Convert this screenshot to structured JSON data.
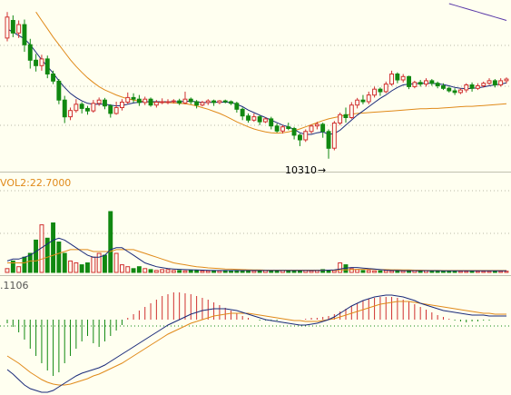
{
  "colors": {
    "background": "#fffff0",
    "grid": "#b8b8a8",
    "divider": "#c0c0b0",
    "up": "#d03030",
    "down": "#118811",
    "ma_blue": "#1a2a7a",
    "ma_orange": "#e08a1a",
    "ma_purple": "#5a3aa8",
    "annotation": "#000000"
  },
  "price_panel": {
    "low_annotation": "10310",
    "low_arrow": "→"
  },
  "volume_panel": {
    "label": "VOL2:22.7000"
  },
  "macd_panel": {
    "label": ".1106"
  },
  "chart_data": [
    {
      "type": "candlestick",
      "panel": "price",
      "y_range": [
        10290,
        10680
      ],
      "low_marker_value": 10310,
      "candles": [
        [
          10598,
          10648,
          10590,
          10660
        ],
        [
          10640,
          10610,
          10600,
          10652
        ],
        [
          10610,
          10630,
          10598,
          10640
        ],
        [
          10630,
          10582,
          10565,
          10642
        ],
        [
          10582,
          10545,
          10525,
          10596
        ],
        [
          10545,
          10532,
          10518,
          10560
        ],
        [
          10532,
          10548,
          10520,
          10558
        ],
        [
          10548,
          10512,
          10502,
          10556
        ],
        [
          10512,
          10495,
          10488,
          10520
        ],
        [
          10495,
          10450,
          10440,
          10500
        ],
        [
          10450,
          10410,
          10395,
          10460
        ],
        [
          10410,
          10425,
          10402,
          10432
        ],
        [
          10425,
          10440,
          10420,
          10452
        ],
        [
          10440,
          10430,
          10418,
          10445
        ],
        [
          10430,
          10424,
          10415,
          10436
        ],
        [
          10424,
          10442,
          10420,
          10450
        ],
        [
          10442,
          10450,
          10436,
          10456
        ],
        [
          10450,
          10436,
          10428,
          10455
        ],
        [
          10436,
          10418,
          10408,
          10440
        ],
        [
          10418,
          10432,
          10415,
          10446
        ],
        [
          10432,
          10445,
          10425,
          10452
        ],
        [
          10445,
          10456,
          10440,
          10468
        ],
        [
          10456,
          10452,
          10444,
          10466
        ],
        [
          10452,
          10444,
          10436,
          10462
        ],
        [
          10444,
          10452,
          10438,
          10458
        ],
        [
          10452,
          10438,
          10434,
          10456
        ],
        [
          10438,
          10445,
          10432,
          10450
        ],
        [
          10445,
          10446,
          10440,
          10454
        ],
        [
          10446,
          10446,
          10440,
          10452
        ],
        [
          10446,
          10448,
          10442,
          10452
        ],
        [
          10448,
          10443,
          10438,
          10453
        ],
        [
          10443,
          10452,
          10440,
          10470
        ],
        [
          10452,
          10446,
          10440,
          10456
        ],
        [
          10446,
          10438,
          10430,
          10450
        ],
        [
          10438,
          10444,
          10435,
          10448
        ],
        [
          10444,
          10448,
          10438,
          10452
        ],
        [
          10448,
          10444,
          10436,
          10451
        ],
        [
          10444,
          10448,
          10440,
          10450
        ],
        [
          10448,
          10446,
          10442,
          10451
        ],
        [
          10446,
          10442,
          10438,
          10449
        ],
        [
          10442,
          10428,
          10420,
          10446
        ],
        [
          10428,
          10412,
          10402,
          10432
        ],
        [
          10412,
          10402,
          10396,
          10418
        ],
        [
          10402,
          10410,
          10398,
          10418
        ],
        [
          10410,
          10398,
          10390,
          10414
        ],
        [
          10398,
          10405,
          10395,
          10408
        ],
        [
          10405,
          10388,
          10380,
          10410
        ],
        [
          10388,
          10376,
          10372,
          10394
        ],
        [
          10376,
          10386,
          10370,
          10390
        ],
        [
          10386,
          10382,
          10378,
          10396
        ],
        [
          10382,
          10366,
          10356,
          10386
        ],
        [
          10366,
          10355,
          10340,
          10370
        ],
        [
          10355,
          10375,
          10350,
          10380
        ],
        [
          10375,
          10388,
          10370,
          10392
        ],
        [
          10388,
          10392,
          10380,
          10398
        ],
        [
          10392,
          10375,
          10360,
          10396
        ],
        [
          10375,
          10335,
          10310,
          10380
        ],
        [
          10335,
          10395,
          10330,
          10400
        ],
        [
          10395,
          10415,
          10390,
          10420
        ],
        [
          10415,
          10408,
          10396,
          10432
        ],
        [
          10408,
          10438,
          10405,
          10445
        ],
        [
          10438,
          10450,
          10430,
          10455
        ],
        [
          10450,
          10446,
          10440,
          10462
        ],
        [
          10446,
          10462,
          10440,
          10470
        ],
        [
          10462,
          10476,
          10456,
          10482
        ],
        [
          10476,
          10470,
          10460,
          10480
        ],
        [
          10470,
          10488,
          10466,
          10494
        ],
        [
          10488,
          10512,
          10484,
          10520
        ],
        [
          10512,
          10498,
          10490,
          10516
        ],
        [
          10498,
          10506,
          10492,
          10512
        ],
        [
          10506,
          10482,
          10476,
          10508
        ],
        [
          10482,
          10492,
          10478,
          10496
        ],
        [
          10492,
          10488,
          10482,
          10498
        ],
        [
          10488,
          10496,
          10482,
          10502
        ],
        [
          10496,
          10490,
          10484,
          10500
        ],
        [
          10490,
          10484,
          10478,
          10494
        ],
        [
          10484,
          10478,
          10474,
          10490
        ],
        [
          10478,
          10472,
          10468,
          10482
        ],
        [
          10472,
          10468,
          10462,
          10478
        ],
        [
          10468,
          10474,
          10464,
          10478
        ],
        [
          10474,
          10486,
          10468,
          10490
        ],
        [
          10486,
          10478,
          10470,
          10492
        ],
        [
          10478,
          10484,
          10474,
          10490
        ],
        [
          10484,
          10490,
          10480,
          10494
        ],
        [
          10490,
          10496,
          10486,
          10502
        ],
        [
          10496,
          10486,
          10480,
          10500
        ],
        [
          10486,
          10496,
          10482,
          10502
        ],
        [
          10496,
          10500,
          10490,
          10504
        ]
      ],
      "ma_short": [
        10620,
        10612,
        10604,
        10596,
        10582,
        10564,
        10546,
        10530,
        10514,
        10496,
        10480,
        10466,
        10456,
        10448,
        10442,
        10440,
        10440,
        10440,
        10438,
        10436,
        10437,
        10440,
        10443,
        10445,
        10446,
        10446,
        10446,
        10446,
        10446,
        10446,
        10446,
        10447,
        10447,
        10446,
        10444,
        10444,
        10445,
        10445,
        10445,
        10444,
        10440,
        10434,
        10426,
        10420,
        10414,
        10408,
        10402,
        10396,
        10390,
        10386,
        10380,
        10372,
        10368,
        10368,
        10372,
        10374,
        10368,
        10370,
        10378,
        10390,
        10402,
        10414,
        10424,
        10434,
        10444,
        10454,
        10462,
        10472,
        10480,
        10486,
        10488,
        10489,
        10490,
        10490,
        10490,
        10489,
        10487,
        10484,
        10480,
        10478,
        10477,
        10478,
        10479,
        10481,
        10484,
        10486,
        10488,
        10491
      ],
      "ma_mid": [
        null,
        null,
        null,
        null,
        null,
        10660,
        10640,
        10620,
        10600,
        10582,
        10564,
        10546,
        10530,
        10516,
        10503,
        10492,
        10482,
        10474,
        10468,
        10462,
        10457,
        10453,
        10450,
        10448,
        10446,
        10445,
        10444,
        10444,
        10444,
        10443,
        10442,
        10441,
        10439,
        10436,
        10432,
        10428,
        10423,
        10418,
        10412,
        10405,
        10398,
        10392,
        10386,
        10381,
        10377,
        10374,
        10372,
        10371,
        10372,
        10374,
        10377,
        10381,
        10386,
        10391,
        10396,
        10401,
        10405,
        10408,
        10411,
        10414,
        10416,
        10418,
        10419,
        10420,
        10421,
        10422,
        10423,
        10424,
        10425,
        10426,
        10427,
        10428,
        10429,
        10429,
        10430,
        10430,
        10431,
        10432,
        10433,
        10434,
        10435,
        10435,
        10436,
        10437,
        10438,
        10439,
        10440,
        10441
      ],
      "ma_long": [
        null,
        null,
        null,
        null,
        null,
        null,
        null,
        null,
        null,
        null,
        null,
        null,
        null,
        null,
        null,
        null,
        null,
        null,
        null,
        null,
        null,
        null,
        null,
        null,
        null,
        null,
        null,
        null,
        null,
        null,
        null,
        null,
        null,
        null,
        null,
        null,
        null,
        null,
        null,
        null,
        null,
        null,
        null,
        null,
        null,
        null,
        null,
        null,
        null,
        null,
        null,
        null,
        null,
        null,
        null,
        null,
        null,
        null,
        null,
        null,
        null,
        null,
        null,
        null,
        null,
        null,
        null,
        null,
        null,
        null,
        null,
        null,
        null,
        null,
        null,
        null,
        null,
        10680,
        10676,
        10672,
        10668,
        10664,
        10660,
        10656,
        10652,
        10648,
        10644,
        10640
      ]
    },
    {
      "type": "bar",
      "panel": "volume",
      "y_range": [
        0,
        42
      ],
      "values": [
        2,
        6,
        3,
        8,
        10,
        17,
        25,
        18,
        26,
        16,
        10,
        6,
        5,
        4,
        5,
        8,
        10,
        9,
        32,
        10,
        4,
        3,
        2,
        3,
        2,
        1.5,
        1,
        1.5,
        1.5,
        1,
        1,
        0.8,
        1,
        1,
        0.8,
        0.8,
        1,
        0.8,
        1,
        0.8,
        1,
        0.8,
        1,
        0.8,
        1,
        1,
        0.8,
        1,
        1,
        0.8,
        0.8,
        1.2,
        1,
        0.8,
        1,
        1.5,
        1.2,
        1,
        5,
        4,
        2,
        1.5,
        1,
        1,
        0.8,
        0.8,
        1,
        0.8,
        1,
        0.8,
        1,
        1.2,
        1,
        1,
        0.8,
        0.8,
        0.8,
        0.8,
        0.6,
        0.6,
        0.6,
        0.6,
        0.6,
        0.6,
        0.6,
        0.6,
        0.6,
        0.6
      ],
      "ma_blue": [
        6,
        7,
        7,
        8,
        9,
        11,
        13,
        15,
        17,
        18,
        17,
        15,
        13,
        11,
        9,
        8,
        8,
        9,
        12,
        13,
        13,
        11,
        9,
        7,
        5,
        4,
        3,
        2.5,
        2,
        1.8,
        1.6,
        1.5,
        1.4,
        1.3,
        1.2,
        1.1,
        1,
        1,
        1,
        1,
        1,
        1,
        1,
        1,
        1,
        1,
        1,
        1,
        1,
        1,
        1,
        1,
        1,
        1,
        1,
        1.1,
        1.2,
        1.3,
        1.8,
        2.3,
        2.6,
        2.6,
        2.3,
        2,
        1.8,
        1.5,
        1.2,
        1,
        1,
        0.9,
        0.9,
        0.9,
        0.9,
        0.9,
        0.9,
        0.9,
        0.8,
        0.8,
        0.8,
        0.8,
        0.8,
        0.8,
        0.8,
        0.8,
        0.8,
        0.8,
        0.8,
        0.8
      ],
      "ma_orange": [
        5,
        5,
        5,
        5,
        6,
        6,
        7,
        8,
        9,
        10,
        11,
        12,
        12,
        12,
        12,
        11,
        11,
        11,
        11,
        12,
        12,
        12,
        12,
        11,
        10,
        9,
        8,
        7,
        6,
        5,
        4.5,
        4,
        3.5,
        3,
        2.7,
        2.4,
        2.2,
        2,
        1.8,
        1.7,
        1.6,
        1.5,
        1.4,
        1.3,
        1.3,
        1.2,
        1.2,
        1.2,
        1.2,
        1.2,
        1.2,
        1.2,
        1.2,
        1.2,
        1.2,
        1.2,
        1.2,
        1.2,
        1.3,
        1.4,
        1.5,
        1.6,
        1.6,
        1.6,
        1.6,
        1.5,
        1.5,
        1.4,
        1.4,
        1.3,
        1.3,
        1.2,
        1.2,
        1.1,
        1.1,
        1.1,
        1,
        1,
        1,
        1,
        1,
        1,
        1,
        1,
        1,
        1,
        1,
        1
      ]
    },
    {
      "type": "bar",
      "panel": "macd",
      "y_range": [
        -80,
        40
      ],
      "histogram": [
        -4,
        -8,
        -14,
        -22,
        -32,
        -40,
        -48,
        -56,
        -62,
        -58,
        -48,
        -40,
        -32,
        -24,
        -18,
        -26,
        -30,
        -24,
        -18,
        -12,
        -6,
        2,
        6,
        10,
        14,
        18,
        22,
        26,
        28,
        30,
        30,
        29,
        28,
        26,
        24,
        22,
        19,
        16,
        13,
        10,
        7,
        4,
        2,
        0,
        -1,
        -1,
        -1,
        -1,
        0,
        0,
        0,
        0,
        1,
        2,
        2,
        3,
        4,
        6,
        9,
        12,
        15,
        18,
        21,
        23,
        24,
        25,
        25,
        25,
        24,
        22,
        20,
        17,
        14,
        11,
        8,
        5,
        3,
        1,
        -1,
        -2,
        -3,
        -2,
        -2,
        -1,
        -1,
        0,
        0,
        0
      ],
      "dif": [
        -55,
        -60,
        -66,
        -72,
        -76,
        -78,
        -80,
        -80,
        -78,
        -74,
        -70,
        -66,
        -62,
        -59,
        -57,
        -55,
        -53,
        -50,
        -46,
        -42,
        -38,
        -34,
        -30,
        -26,
        -22,
        -18,
        -14,
        -10,
        -6,
        -3,
        0,
        3,
        6,
        8,
        10,
        11,
        12,
        12,
        12,
        11,
        10,
        8,
        6,
        4,
        2,
        0,
        -1,
        -2,
        -3,
        -4,
        -5,
        -6,
        -6,
        -5,
        -4,
        -2,
        0,
        3,
        7,
        11,
        15,
        18,
        21,
        23,
        25,
        26,
        27,
        27,
        26,
        25,
        23,
        21,
        18,
        16,
        14,
        12,
        10,
        9,
        8,
        7,
        6,
        5,
        5,
        5,
        4,
        4,
        4,
        4
      ],
      "dea": [
        -40,
        -44,
        -48,
        -53,
        -58,
        -62,
        -66,
        -69,
        -71,
        -72,
        -72,
        -71,
        -69,
        -67,
        -65,
        -62,
        -60,
        -57,
        -54,
        -51,
        -48,
        -44,
        -40,
        -36,
        -32,
        -28,
        -24,
        -20,
        -16,
        -13,
        -10,
        -7,
        -4,
        -2,
        0,
        2,
        4,
        5,
        6,
        7,
        7,
        7,
        7,
        6,
        5,
        4,
        3,
        2,
        1,
        0,
        -1,
        -1,
        -2,
        -2,
        -2,
        -1,
        0,
        1,
        3,
        5,
        7,
        9,
        11,
        13,
        15,
        17,
        18,
        19,
        20,
        20,
        20,
        19,
        18,
        17,
        16,
        15,
        14,
        13,
        12,
        11,
        10,
        9,
        8,
        7,
        7,
        6,
        6,
        6
      ]
    }
  ]
}
